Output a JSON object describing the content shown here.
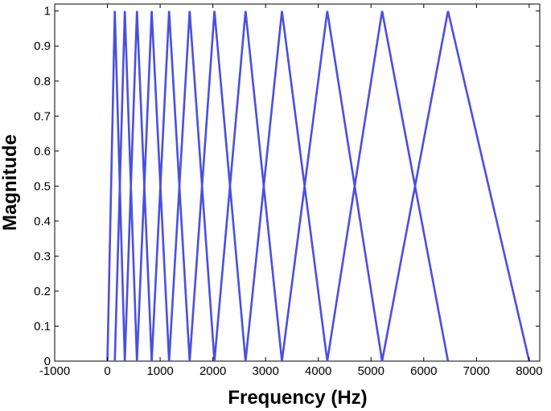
{
  "chart_data": {
    "type": "line",
    "title": "",
    "xlabel": "Frequency (Hz)",
    "ylabel": "Magnitude",
    "xlim": [
      -1000,
      8200
    ],
    "ylim": [
      0,
      1.02
    ],
    "grid": false,
    "x_ticks": [
      -1000,
      0,
      1000,
      2000,
      3000,
      4000,
      5000,
      6000,
      7000,
      8000
    ],
    "x_tick_labels": [
      "-1000",
      "0",
      "1000",
      "2000",
      "3000",
      "4000",
      "5000",
      "6000",
      "7000",
      "8000"
    ],
    "y_ticks": [
      0,
      0.1,
      0.2,
      0.3,
      0.4,
      0.5,
      0.6,
      0.7,
      0.8,
      0.9,
      1
    ],
    "y_tick_labels": [
      "0",
      "0.1",
      "0.2",
      "0.3",
      "0.4",
      "0.5",
      "0.6",
      "0.7",
      "0.8",
      "0.9",
      "1"
    ],
    "filter_edges_hz": [
      0,
      140,
      330,
      560,
      840,
      1170,
      1560,
      2030,
      2620,
      3310,
      4170,
      5210,
      6460,
      8000
    ],
    "line_color": "#4a4fe0",
    "series": [
      {
        "x": [
          0,
          140,
          330
        ],
        "y": [
          0,
          1,
          0
        ]
      },
      {
        "x": [
          140,
          330,
          560
        ],
        "y": [
          0,
          1,
          0
        ]
      },
      {
        "x": [
          330,
          560,
          840
        ],
        "y": [
          0,
          1,
          0
        ]
      },
      {
        "x": [
          560,
          840,
          1170
        ],
        "y": [
          0,
          1,
          0
        ]
      },
      {
        "x": [
          840,
          1170,
          1560
        ],
        "y": [
          0,
          1,
          0
        ]
      },
      {
        "x": [
          1170,
          1560,
          2030
        ],
        "y": [
          0,
          1,
          0
        ]
      },
      {
        "x": [
          1560,
          2030,
          2620
        ],
        "y": [
          0,
          1,
          0
        ]
      },
      {
        "x": [
          2030,
          2620,
          3310
        ],
        "y": [
          0,
          1,
          0
        ]
      },
      {
        "x": [
          2620,
          3310,
          4170
        ],
        "y": [
          0,
          1,
          0
        ]
      },
      {
        "x": [
          3310,
          4170,
          5210
        ],
        "y": [
          0,
          1,
          0
        ]
      },
      {
        "x": [
          4170,
          5210,
          6460
        ],
        "y": [
          0,
          1,
          0
        ]
      },
      {
        "x": [
          5210,
          6460,
          8000
        ],
        "y": [
          0,
          1,
          0
        ]
      }
    ]
  }
}
